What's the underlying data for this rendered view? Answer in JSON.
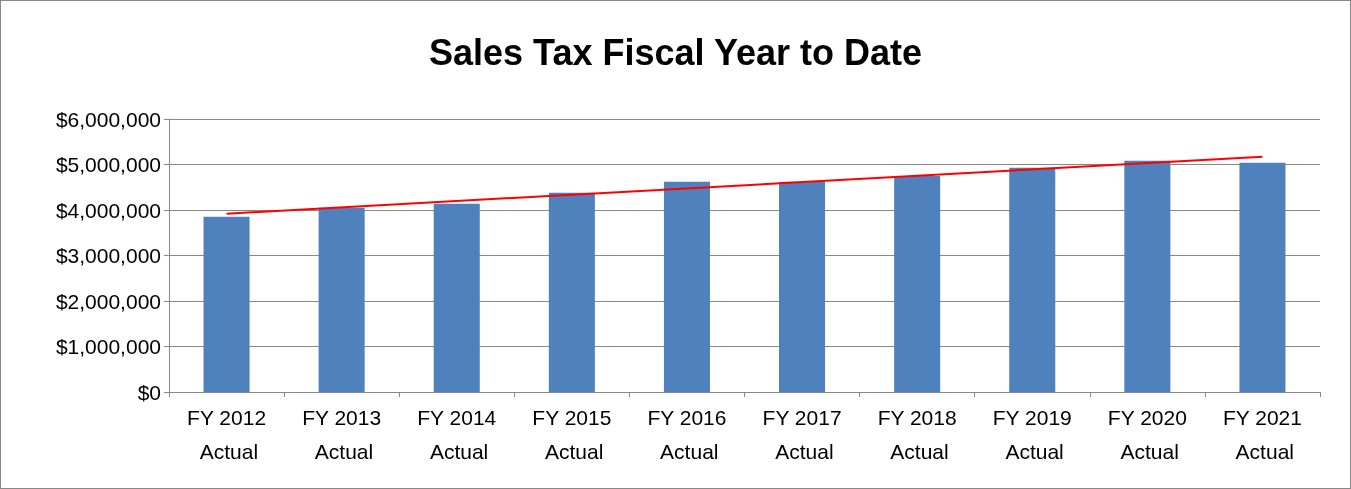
{
  "chart_data": {
    "type": "bar",
    "title": "Sales Tax Fiscal Year to Date",
    "categories": [
      "FY 2012 Actual",
      "FY 2013 Actual",
      "FY 2014 Actual",
      "FY 2015 Actual",
      "FY 2016 Actual",
      "FY 2017 Actual",
      "FY 2018 Actual",
      "FY 2019 Actual",
      "FY 2020 Actual",
      "FY 2021 Actual"
    ],
    "series": [
      {
        "color": "#4f81bd",
        "values": [
          3850000,
          4050000,
          4140000,
          4380000,
          4620000,
          4620000,
          4750000,
          4930000,
          5080000,
          5040000
        ]
      },
      {
        "type": "line",
        "color": "#ff0000",
        "x": [
          "FY 2012 Actual",
          "FY 2021 Actual"
        ],
        "values": [
          3920000,
          5170000
        ]
      }
    ],
    "ylim": [
      0,
      6000000
    ],
    "yticks": [
      {
        "value": 0,
        "label": "$0"
      },
      {
        "value": 1000000,
        "label": "$1,000,000"
      },
      {
        "value": 2000000,
        "label": "$2,000,000"
      },
      {
        "value": 3000000,
        "label": "$3,000,000"
      },
      {
        "value": 4000000,
        "label": "$4,000,000"
      },
      {
        "value": 5000000,
        "label": "$5,000,000"
      },
      {
        "value": 6000000,
        "label": "$6,000,000"
      }
    ],
    "grid": "y",
    "marker": "none",
    "line_style": "solid"
  }
}
